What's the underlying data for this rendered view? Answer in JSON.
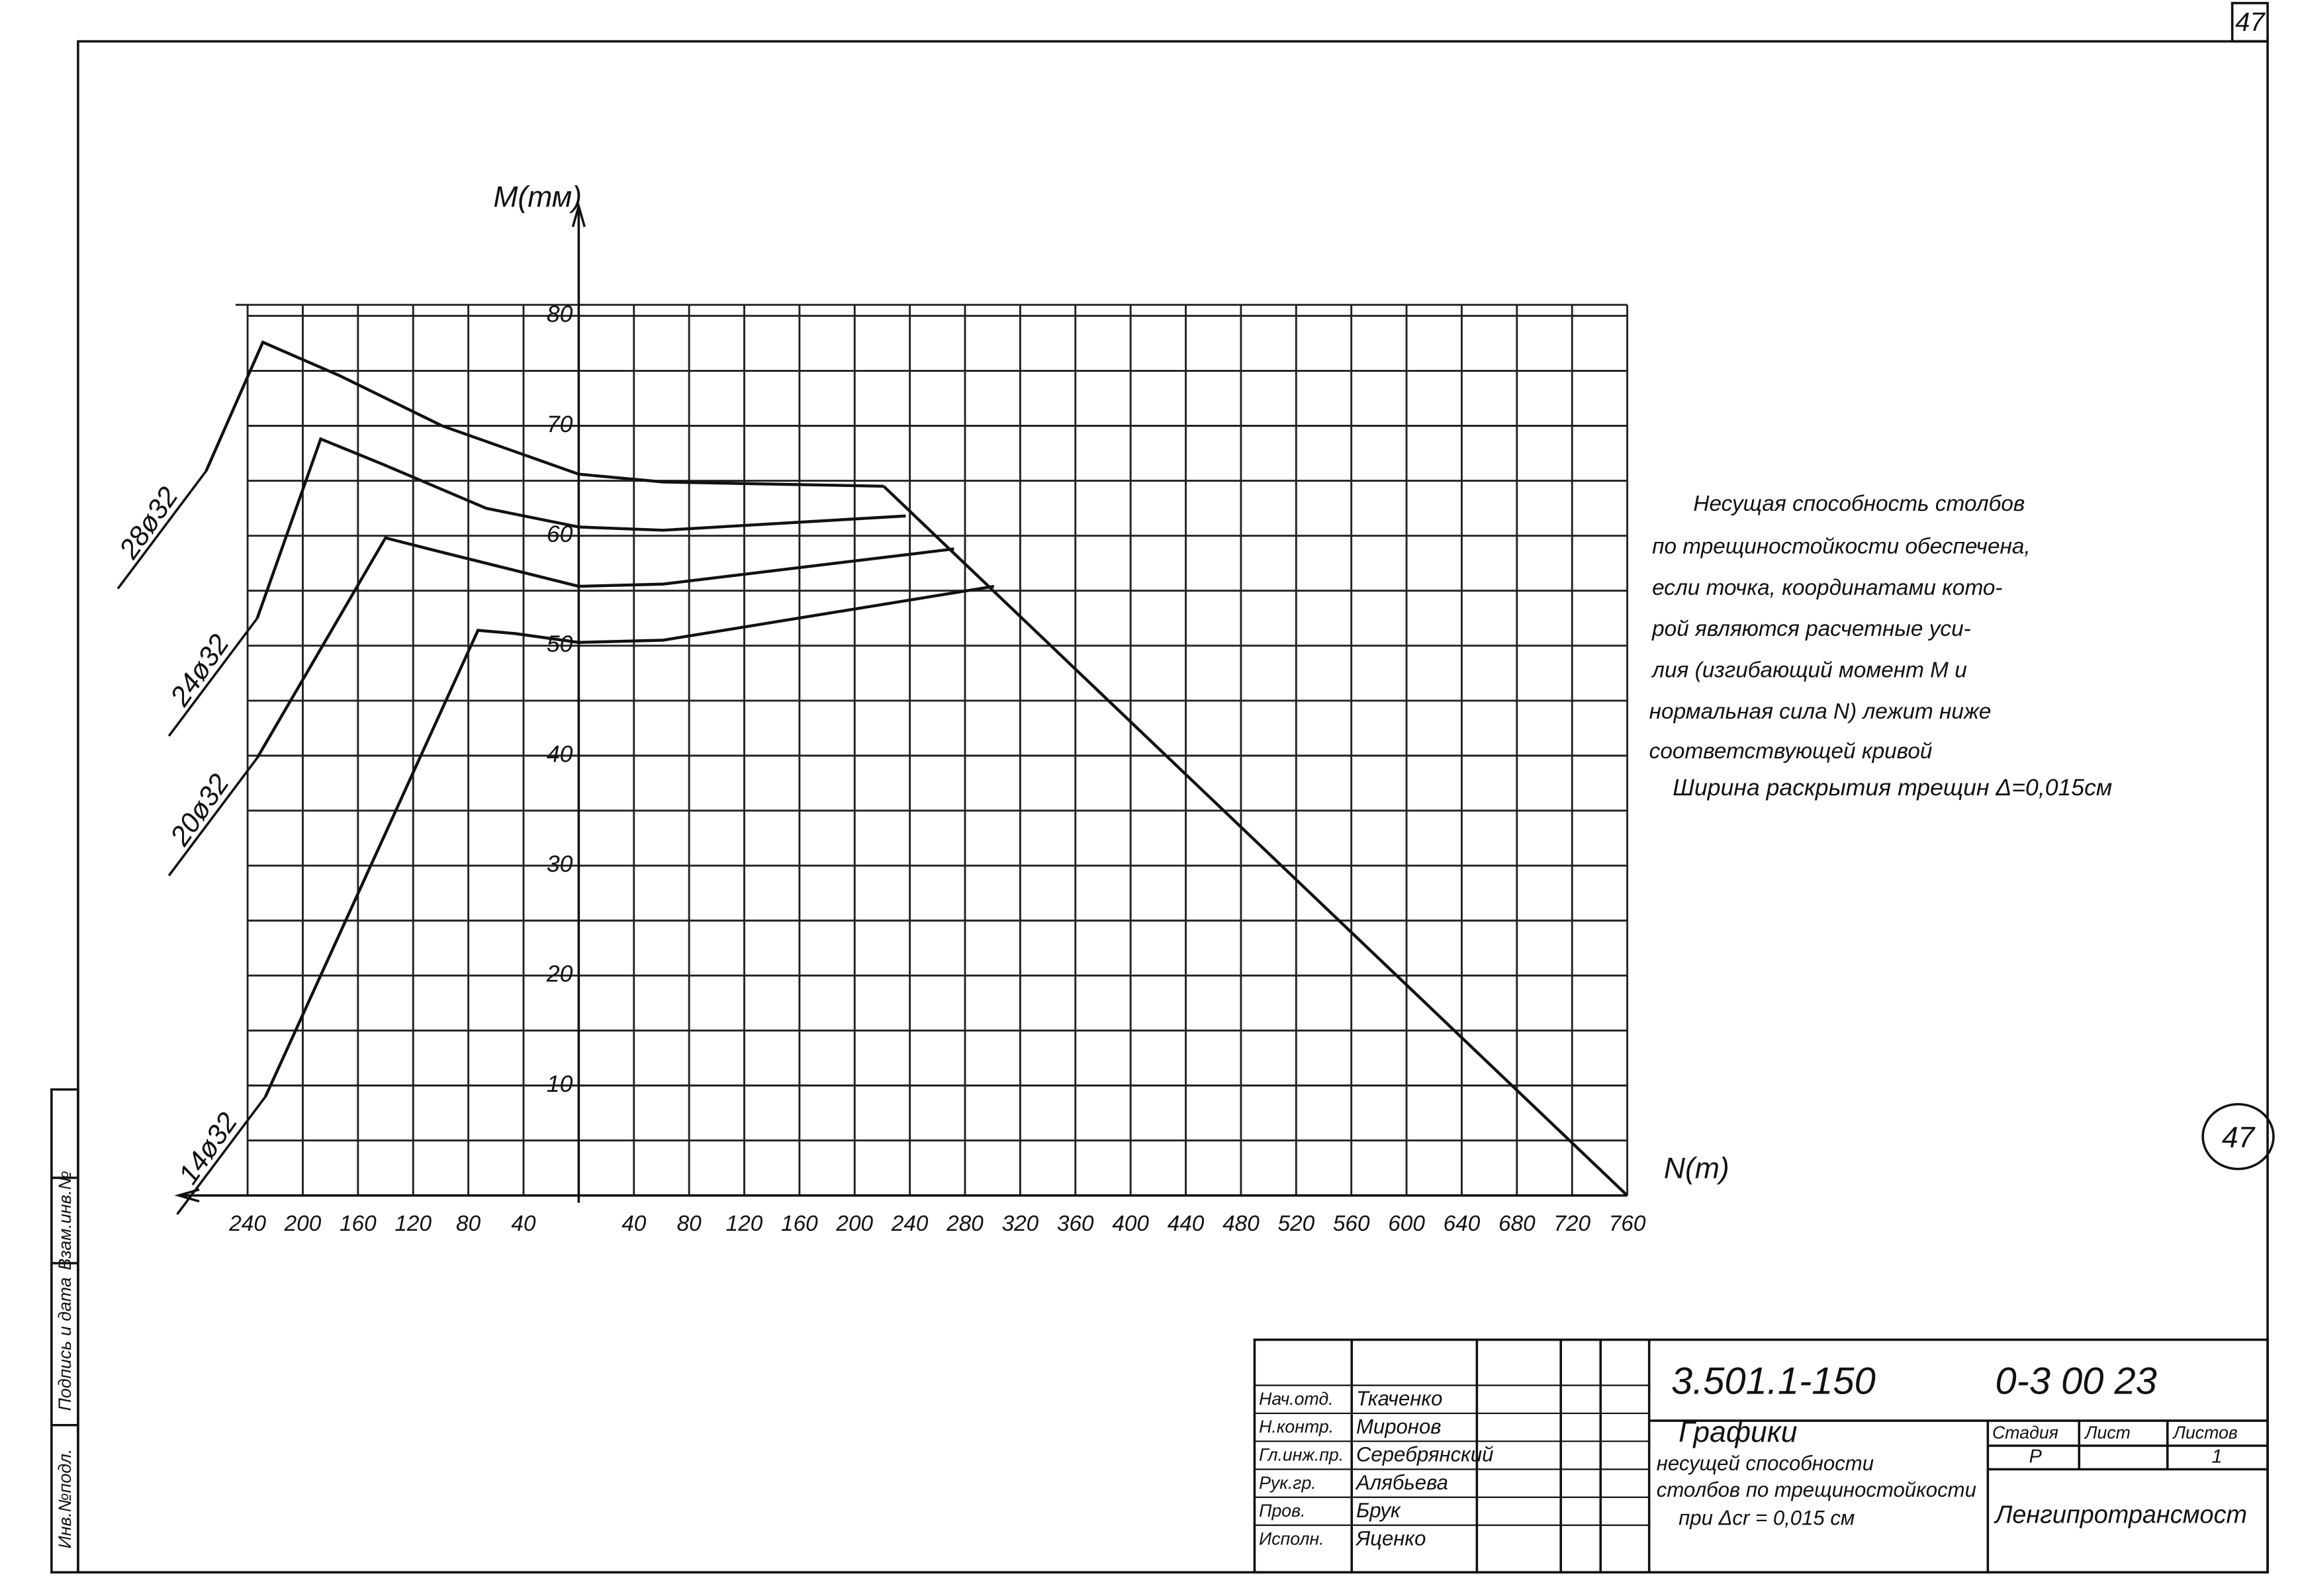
{
  "chart_data": {
    "type": "line",
    "y_label": "M(тм)",
    "x_label": "N(т)",
    "xlim": [
      -290,
      770
    ],
    "ylim": [
      0,
      81
    ],
    "xticks": [
      {
        "value": -240,
        "label": "240"
      },
      {
        "value": -200,
        "label": "200"
      },
      {
        "value": -160,
        "label": "160"
      },
      {
        "value": -120,
        "label": "120"
      },
      {
        "value": -80,
        "label": "80"
      },
      {
        "value": -40,
        "label": "40"
      },
      40,
      80,
      120,
      160,
      200,
      240,
      280,
      320,
      360,
      400,
      440,
      480,
      520,
      560,
      600,
      640,
      680,
      720,
      760
    ],
    "yticks": [
      10,
      20,
      30,
      40,
      50,
      60,
      70,
      80
    ],
    "yminorticks": [
      5,
      15,
      25,
      35,
      45,
      55,
      65,
      75
    ],
    "grid": true,
    "series": [
      {
        "name": "28ø32",
        "color": "#111",
        "x": [
          -270,
          -229,
          -174,
          -99,
          0,
          61,
          221
        ],
        "values": [
          65.9,
          77.6,
          74.6,
          70,
          65.6,
          64.9,
          64.5
        ]
      },
      {
        "name": "24ø32",
        "color": "#111",
        "x": [
          -233,
          -187,
          -142,
          -67,
          0,
          61,
          237
        ],
        "values": [
          52.5,
          68.8,
          66.5,
          62.5,
          60.8,
          60.5,
          61.8
        ]
      },
      {
        "name": "20ø32",
        "color": "#111",
        "x": [
          -233,
          -140,
          -99,
          0,
          61,
          272
        ],
        "values": [
          39.8,
          59.8,
          58.5,
          55.4,
          55.6,
          58.8
        ]
      },
      {
        "name": "14ø32",
        "color": "#111",
        "x": [
          -227,
          -73,
          -46,
          0,
          61,
          301
        ],
        "values": [
          9,
          51.4,
          51.1,
          50.3,
          50.5,
          55.4
        ]
      },
      {
        "color": "#111",
        "x": [
          221,
          760
        ],
        "values": [
          64.5,
          0
        ]
      }
    ]
  },
  "notes": {
    "lines": [
      "Несущая способность столбов",
      "по трещиностойкости обеспечена,",
      "если точка, координатами кото-",
      "рой являются расчетные уси-",
      "лия (изгибающий момент M и",
      "нормальная сила N) лежит ниже",
      "соответствующей кривой",
      "Ширина раскрытия трещин Δ=0,015см"
    ]
  },
  "sheet_number": "47",
  "stamp_number": "47",
  "side_labels": [
    "Инв.№подл.",
    "Подпись и дата",
    "Взам.инв.№"
  ],
  "title_block": {
    "code": "3.501.1-150",
    "sheet_code": "0-3 00 23",
    "title": [
      "Графики",
      "несущей способности",
      "столбов по трещиностойкости",
      "при Δcr = 0,015 см"
    ],
    "headers": [
      "Стадия",
      "Лист",
      "Листов"
    ],
    "stage": "Р",
    "sheet": "1",
    "organization": "Ленгипротрансмост",
    "roles": [
      "Нач.отд.",
      "Н.контр.",
      "Гл.инж.пр.",
      "Рук.гр.",
      "Пров.",
      "Исполн."
    ],
    "names": [
      "Ткаченко",
      "Миронов",
      "Серебрянский",
      "Алябьева",
      "Брук",
      "Яценко"
    ]
  }
}
